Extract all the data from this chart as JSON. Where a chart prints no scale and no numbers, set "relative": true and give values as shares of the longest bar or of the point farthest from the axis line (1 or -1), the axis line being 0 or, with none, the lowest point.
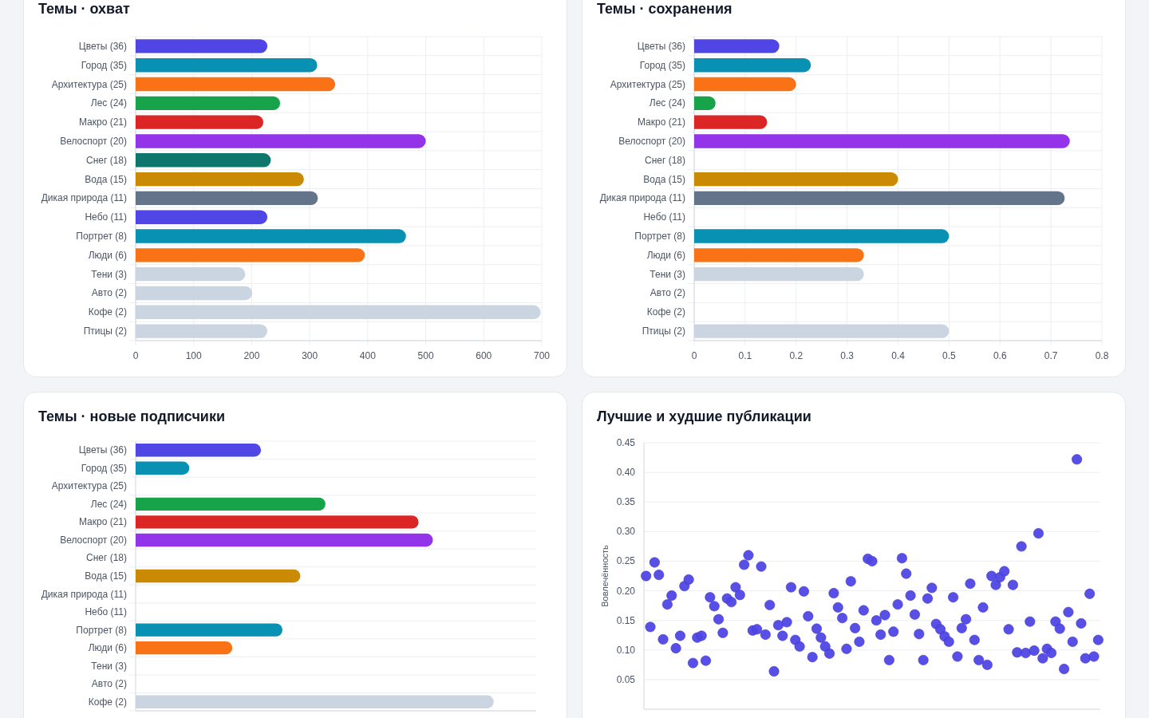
{
  "chart_data": [
    {
      "type": "bar",
      "title": "Темы · охват",
      "orientation": "horizontal",
      "grid": true,
      "categories": [
        "Цветы (36)",
        "Город (35)",
        "Архитектура (25)",
        "Лес (24)",
        "Макро (21)",
        "Велоспорт (20)",
        "Снег (18)",
        "Вода (15)",
        "Дикая природа (11)",
        "Небо (11)",
        "Портрет (8)",
        "Люди (6)",
        "Тени (3)",
        "Авто (2)",
        "Кофе (2)",
        "Птицы (2)"
      ],
      "values": [
        227,
        313,
        344,
        249,
        220,
        500,
        233,
        290,
        314,
        227,
        466,
        395,
        189,
        201,
        698,
        227
      ],
      "colors": [
        "#4f46e5",
        "#0891b2",
        "#f97316",
        "#16a34a",
        "#dc2626",
        "#9333ea",
        "#0f766e",
        "#ca8a04",
        "#64748b",
        "#4f46e5",
        "#0891b2",
        "#f97316",
        "#cbd5e1",
        "#cbd5e1",
        "#cbd5e1",
        "#cbd5e1"
      ],
      "xlim": [
        0,
        700
      ],
      "xticks": [
        0,
        100,
        200,
        300,
        400,
        500,
        600,
        700
      ]
    },
    {
      "type": "bar",
      "title": "Темы · сохранения",
      "orientation": "horizontal",
      "grid": true,
      "categories": [
        "Цветы (36)",
        "Город (35)",
        "Архитектура (25)",
        "Лес (24)",
        "Макро (21)",
        "Велоспорт (20)",
        "Снег (18)",
        "Вода (15)",
        "Дикая природа (11)",
        "Небо (11)",
        "Портрет (8)",
        "Люди (6)",
        "Тени (3)",
        "Авто (2)",
        "Кофе (2)",
        "Птицы (2)"
      ],
      "values": [
        0.167,
        0.229,
        0.2,
        0.042,
        0.143,
        0.737,
        null,
        0.4,
        0.727,
        null,
        0.5,
        0.333,
        0.333,
        null,
        null,
        0.5
      ],
      "colors": [
        "#4f46e5",
        "#0891b2",
        "#f97316",
        "#16a34a",
        "#dc2626",
        "#9333ea",
        null,
        "#ca8a04",
        "#64748b",
        null,
        "#0891b2",
        "#f97316",
        "#cbd5e1",
        null,
        null,
        "#cbd5e1"
      ],
      "xlim": [
        0,
        0.8
      ],
      "xticks": [
        0,
        0.1,
        0.2,
        0.3,
        0.4,
        0.5,
        0.6,
        0.7,
        0.8
      ]
    },
    {
      "type": "bar",
      "title": "Темы · новые подписчики",
      "orientation": "horizontal",
      "grid": "y",
      "relative": true,
      "categories": [
        "Цветы (36)",
        "Город (35)",
        "Архитектура (25)",
        "Лес (24)",
        "Макро (21)",
        "Велоспорт (20)",
        "Снег (18)",
        "Вода (15)",
        "Дикая природа (11)",
        "Небо (11)",
        "Портрет (8)",
        "Люди (6)",
        "Тени (3)",
        "Авто (2)",
        "Кофе (2)"
      ],
      "values": [
        0.35,
        0.15,
        null,
        0.53,
        0.79,
        0.83,
        null,
        0.46,
        null,
        null,
        0.41,
        0.27,
        null,
        null,
        1
      ],
      "colors": [
        "#4f46e5",
        "#0891b2",
        null,
        "#16a34a",
        "#dc2626",
        "#9333ea",
        null,
        "#ca8a04",
        null,
        null,
        "#0891b2",
        "#f97316",
        null,
        null,
        "#cbd5e1"
      ]
    },
    {
      "type": "scatter",
      "title": "Лучшие и худшие публикации",
      "ylabel": "Вовлечённость",
      "grid": "y",
      "marker": "circle",
      "tick_labels": "y",
      "categories": [
        null,
        null,
        null,
        null,
        null,
        null,
        null,
        null,
        null,
        null,
        null,
        null,
        null,
        null,
        null,
        null,
        null,
        null,
        null,
        null,
        null,
        null,
        null,
        null,
        null,
        null,
        null,
        null,
        null,
        null,
        null,
        null,
        null,
        null,
        null,
        null,
        null,
        null,
        null,
        null,
        null,
        null,
        null,
        null,
        null,
        null,
        null,
        null,
        null,
        null,
        null,
        null,
        null,
        null,
        null,
        null,
        null,
        null,
        null,
        null,
        null,
        null,
        null,
        null,
        null,
        null,
        null,
        null,
        null,
        null,
        null,
        null,
        null,
        null,
        null,
        null,
        null,
        null,
        null,
        null,
        null,
        null,
        null,
        null,
        null,
        null,
        null,
        null,
        null,
        null,
        null,
        null,
        null,
        null,
        null,
        null,
        null,
        null,
        null,
        null,
        null,
        null,
        null,
        null,
        null,
        null,
        null
      ],
      "ylim": [
        0,
        0.45
      ],
      "yticks": [
        {
          "value": 0.05,
          "label": "0.05"
        },
        {
          "value": 0.1,
          "label": "0.10"
        },
        {
          "value": 0.15,
          "label": "0.15"
        },
        {
          "value": 0.2,
          "label": "0.20"
        },
        {
          "value": 0.25,
          "label": "0.25"
        },
        {
          "value": 0.3,
          "label": "0.30"
        },
        {
          "value": 0.35,
          "label": "0.35"
        },
        {
          "value": 0.4,
          "label": "0.40"
        },
        {
          "value": 0.45,
          "label": "0.45"
        }
      ],
      "series": [
        {
          "color": "#4f46e5",
          "values": [
            0.225,
            0.139,
            0.248,
            0.227,
            0.118,
            0.177,
            0.192,
            0.103,
            0.124,
            0.208,
            0.219,
            0.078,
            0.121,
            0.124,
            0.082,
            0.189,
            0.174,
            0.152,
            0.129,
            0.187,
            0.181,
            0.206,
            0.193,
            0.244,
            0.26,
            0.133,
            0.135,
            0.241,
            0.126,
            0.176,
            0.064,
            0.142,
            0.124,
            0.147,
            0.206,
            0.117,
            0.106,
            0.199,
            0.157,
            0.088,
            0.136,
            0.121,
            0.106,
            0.094,
            0.196,
            0.172,
            0.154,
            0.102,
            0.216,
            0.137,
            0.114,
            0.167,
            0.254,
            0.25,
            0.15,
            0.126,
            0.159,
            0.083,
            0.131,
            0.177,
            0.255,
            0.229,
            0.192,
            0.16,
            0.127,
            0.083,
            0.187,
            0.205,
            0.144,
            0.135,
            0.123,
            0.114,
            0.189,
            0.089,
            0.137,
            0.152,
            0.212,
            0.117,
            0.083,
            0.172,
            0.075,
            0.225,
            0.21,
            0.223,
            0.233,
            0.135,
            0.21,
            0.096,
            0.275,
            0.095,
            0.148,
            0.099,
            0.297,
            0.086,
            0.102,
            0.095,
            0.148,
            0.136,
            0.068,
            0.164,
            0.114,
            0.422,
            0.145,
            0.086,
            0.195,
            0.089,
            0.117
          ]
        }
      ]
    }
  ]
}
